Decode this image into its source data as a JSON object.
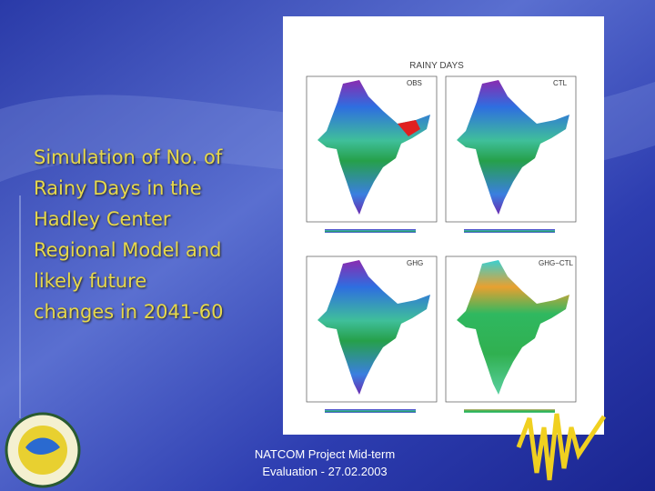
{
  "slide": {
    "text_lines": [
      "Simulation of No. of",
      "Rainy Days in the",
      "Hadley Center",
      "Regional Model and",
      "likely future",
      "changes in 2041-60"
    ],
    "figure": {
      "title": "RAINY DAYS",
      "panels": [
        "OBS",
        "CTL",
        "GHG",
        "GHG−CTL"
      ]
    },
    "footer": [
      "NATCOM Project Mid-term",
      "Evaluation - 27.02.2003"
    ]
  }
}
